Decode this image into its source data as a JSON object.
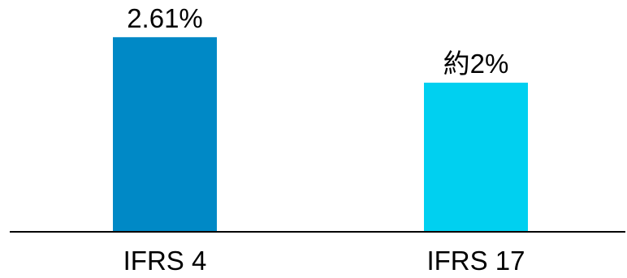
{
  "chart_data": {
    "type": "bar",
    "categories": [
      "IFRS 4",
      "IFRS 17"
    ],
    "values": [
      2.61,
      2.0
    ],
    "data_labels": [
      "2.61%",
      "約2%"
    ],
    "colors": [
      "#0089C6",
      "#00D0F0"
    ],
    "ylim": [
      0,
      3.0
    ],
    "grid": false,
    "legend": "none",
    "title": "",
    "xlabel": "",
    "ylabel": ""
  }
}
